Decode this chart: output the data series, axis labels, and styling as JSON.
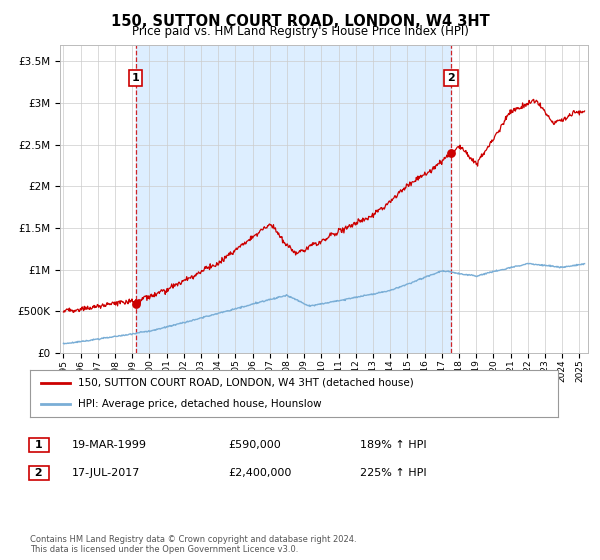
{
  "title": "150, SUTTON COURT ROAD, LONDON, W4 3HT",
  "subtitle": "Price paid vs. HM Land Registry's House Price Index (HPI)",
  "ylim": [
    0,
    3700000
  ],
  "xlim_start": 1994.8,
  "xlim_end": 2025.5,
  "sale1_date": 1999.21,
  "sale1_price": 590000,
  "sale1_label": "1",
  "sale2_date": 2017.54,
  "sale2_price": 2400000,
  "sale2_label": "2",
  "property_color": "#cc0000",
  "hpi_color": "#7aaed6",
  "vline_color": "#cc0000",
  "shade_color": "#ddeeff",
  "grid_color": "#cccccc",
  "background_color": "#ffffff",
  "legend_property": "150, SUTTON COURT ROAD, LONDON, W4 3HT (detached house)",
  "legend_hpi": "HPI: Average price, detached house, Hounslow",
  "annotation1_date": "19-MAR-1999",
  "annotation1_price": "£590,000",
  "annotation1_hpi": "189% ↑ HPI",
  "annotation2_date": "17-JUL-2017",
  "annotation2_price": "£2,400,000",
  "annotation2_hpi": "225% ↑ HPI",
  "footnote": "Contains HM Land Registry data © Crown copyright and database right 2024.\nThis data is licensed under the Open Government Licence v3.0."
}
